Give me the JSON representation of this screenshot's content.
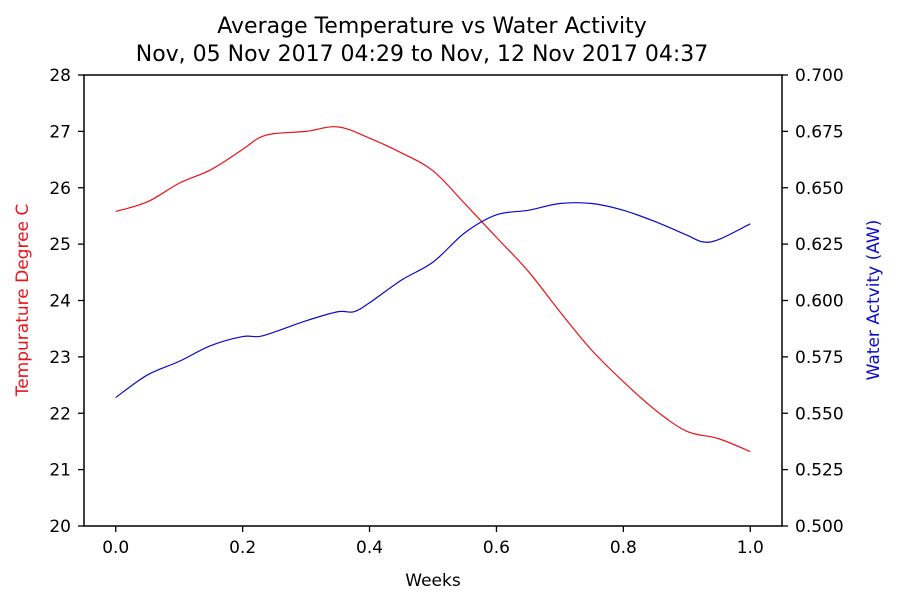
{
  "chart_data": {
    "type": "line",
    "title": "Average Temperature vs Water Activity",
    "subtitle": "Nov, 05 Nov 2017 04:29 to Nov, 12 Nov 2017 04:37",
    "xlabel": "Weeks",
    "ylabel_left": "Tempurature Degree C",
    "ylabel_right": "Water Actvity (AW)",
    "xlim": [
      -0.05,
      1.05
    ],
    "ylim_left": [
      20,
      28
    ],
    "ylim_right": [
      0.5,
      0.7
    ],
    "x_ticks": [
      0.0,
      0.2,
      0.4,
      0.6,
      0.8,
      1.0
    ],
    "x_tick_labels": [
      "0.0",
      "0.2",
      "0.4",
      "0.6",
      "0.8",
      "1.0"
    ],
    "y_left_ticks": [
      20,
      21,
      22,
      23,
      24,
      25,
      26,
      27,
      28
    ],
    "y_left_tick_labels": [
      "20",
      "21",
      "22",
      "23",
      "24",
      "25",
      "26",
      "27",
      "28"
    ],
    "y_right_ticks": [
      0.5,
      0.525,
      0.55,
      0.575,
      0.6,
      0.625,
      0.65,
      0.675,
      0.7
    ],
    "y_right_tick_labels": [
      "0.500",
      "0.525",
      "0.550",
      "0.575",
      "0.600",
      "0.625",
      "0.650",
      "0.675",
      "0.700"
    ],
    "grid": false,
    "series": [
      {
        "axis": "left",
        "color": "#e8131a",
        "x": [
          0.0,
          0.05,
          0.1,
          0.15,
          0.2,
          0.225,
          0.25,
          0.3,
          0.35,
          0.4,
          0.45,
          0.5,
          0.55,
          0.6,
          0.65,
          0.7,
          0.75,
          0.8,
          0.85,
          0.9,
          0.95,
          1.0
        ],
        "values": [
          25.58,
          25.75,
          26.08,
          26.32,
          26.68,
          26.88,
          26.96,
          27.0,
          27.08,
          26.88,
          26.62,
          26.3,
          25.72,
          25.12,
          24.52,
          23.8,
          23.12,
          22.56,
          22.06,
          21.68,
          21.55,
          21.32
        ]
      },
      {
        "axis": "right",
        "color": "#0a0aca",
        "x": [
          0.0,
          0.05,
          0.1,
          0.15,
          0.2,
          0.225,
          0.25,
          0.3,
          0.35,
          0.375,
          0.4,
          0.45,
          0.5,
          0.55,
          0.6,
          0.65,
          0.7,
          0.75,
          0.8,
          0.85,
          0.9,
          0.925,
          0.95,
          1.0
        ],
        "values": [
          0.557,
          0.567,
          0.573,
          0.58,
          0.584,
          0.584,
          0.586,
          0.591,
          0.595,
          0.595,
          0.599,
          0.609,
          0.617,
          0.63,
          0.638,
          0.64,
          0.643,
          0.643,
          0.64,
          0.635,
          0.629,
          0.626,
          0.627,
          0.634
        ]
      }
    ]
  }
}
